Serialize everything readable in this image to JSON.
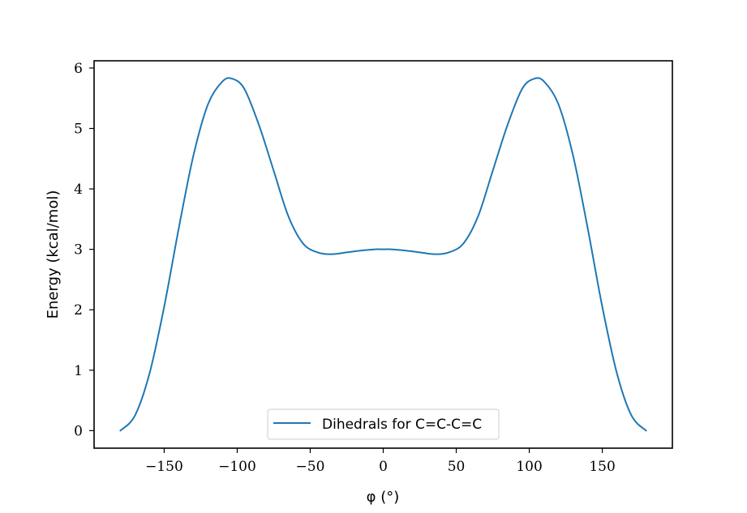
{
  "chart_data": {
    "type": "line",
    "title": "",
    "xlabel": "φ (°)",
    "ylabel": "Energy (kcal/mol)",
    "xlim": [
      -198,
      198
    ],
    "ylim": [
      -0.29,
      6.12
    ],
    "xticks": [
      -150,
      -100,
      -50,
      0,
      50,
      100,
      150
    ],
    "xtick_labels": [
      "−150",
      "−100",
      "−50",
      "0",
      "50",
      "100",
      "150"
    ],
    "yticks": [
      0,
      1,
      2,
      3,
      4,
      5,
      6
    ],
    "ytick_labels": [
      "0",
      "1",
      "2",
      "3",
      "4",
      "5",
      "6"
    ],
    "grid": false,
    "legend": {
      "position": "lower center"
    },
    "series": [
      {
        "name": "Dihedrals for C=C-C=C",
        "color": "#1f77b4",
        "x": [
          -180,
          -170,
          -160,
          -150,
          -140,
          -130,
          -120,
          -110,
          -103,
          -95,
          -85,
          -75,
          -65,
          -55,
          -45,
          -35,
          -25,
          -15,
          -5,
          0,
          5,
          15,
          25,
          35,
          45,
          55,
          65,
          75,
          85,
          95,
          103,
          110,
          120,
          130,
          140,
          150,
          160,
          170,
          180
        ],
        "y": [
          0.0,
          0.25,
          0.95,
          2.05,
          3.35,
          4.55,
          5.4,
          5.78,
          5.82,
          5.65,
          5.05,
          4.3,
          3.55,
          3.1,
          2.95,
          2.92,
          2.95,
          2.98,
          3.0,
          3.0,
          3.0,
          2.98,
          2.95,
          2.92,
          2.95,
          3.1,
          3.55,
          4.3,
          5.05,
          5.65,
          5.82,
          5.78,
          5.4,
          4.55,
          3.35,
          2.05,
          0.95,
          0.25,
          0.0
        ]
      }
    ]
  }
}
